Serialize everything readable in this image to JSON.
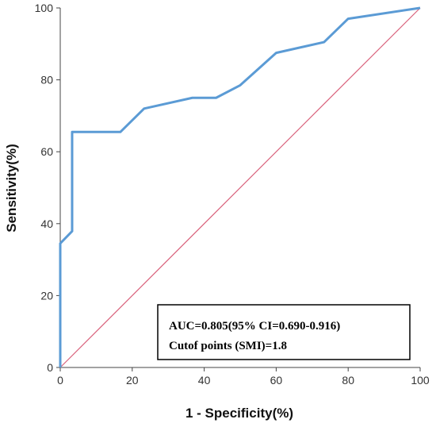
{
  "chart_data": {
    "type": "line",
    "xlabel": "1 - Specificity(%)",
    "ylabel": "Sensitivity(%)",
    "xlim": [
      0,
      100
    ],
    "ylim": [
      0,
      100
    ],
    "x_ticks": [
      "0",
      "20",
      "40",
      "60",
      "80",
      "100"
    ],
    "y_ticks": [
      "0",
      "20",
      "40",
      "60",
      "80",
      "100"
    ],
    "grid": false,
    "series": [
      {
        "color": "#5b9bd5",
        "points": [
          [
            0,
            0
          ],
          [
            0,
            34.5
          ],
          [
            3.3,
            37.9
          ],
          [
            3.3,
            65.5
          ],
          [
            16.7,
            65.5
          ],
          [
            23.3,
            72
          ],
          [
            36.7,
            75
          ],
          [
            43.3,
            75
          ],
          [
            50,
            78.5
          ],
          [
            60,
            87.5
          ],
          [
            73.3,
            90.5
          ],
          [
            80,
            97
          ],
          [
            100,
            100
          ]
        ]
      },
      {
        "color": "#d9607a",
        "points": [
          [
            0,
            0
          ],
          [
            100,
            100
          ]
        ]
      }
    ],
    "annotation": {
      "lines": [
        "AUC=0.805(95% CI=0.690-0.916)",
        "Cutof points (SMI)=1.8"
      ],
      "placement": "bottom-right"
    }
  }
}
